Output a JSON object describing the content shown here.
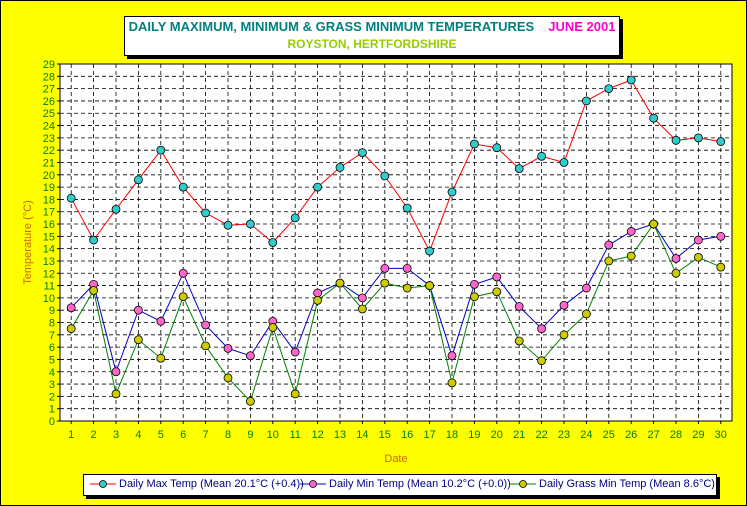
{
  "header": {
    "title": "DAILY MAXIMUM, MINIMUM & GRASS MINIMUM TEMPERATURES",
    "month": "JUNE 2001",
    "subtitle": "ROYSTON, HERTFORDSHIRE"
  },
  "chart_data": {
    "type": "line",
    "xlabel": "Date",
    "ylabel": "Temperature (°C)",
    "x": [
      1,
      2,
      3,
      4,
      5,
      6,
      7,
      8,
      9,
      10,
      11,
      12,
      13,
      14,
      15,
      16,
      17,
      18,
      19,
      20,
      21,
      22,
      23,
      24,
      25,
      26,
      27,
      28,
      29,
      30
    ],
    "ylim": [
      0,
      29
    ],
    "ytick_step": 1,
    "grid": true,
    "legend_position": "bottom",
    "series": [
      {
        "name": "Daily Max Temp (Mean 20.1°C (+0.4))",
        "line_color": "#ff0000",
        "marker_color": "#33cccc",
        "values": [
          18.1,
          14.7,
          17.2,
          19.6,
          22.0,
          19.0,
          16.9,
          15.9,
          16.0,
          14.5,
          16.5,
          19.0,
          20.6,
          21.8,
          19.9,
          17.3,
          13.8,
          18.6,
          22.5,
          22.2,
          20.5,
          21.5,
          21.0,
          26.0,
          27.0,
          27.7,
          24.6,
          22.8,
          23.0,
          22.7
        ]
      },
      {
        "name": "Daily Min Temp (Mean 10.2°C (+0.0))",
        "line_color": "#0000cc",
        "marker_color": "#ff66cc",
        "values": [
          9.2,
          11.1,
          4.0,
          9.0,
          8.1,
          12.0,
          7.8,
          5.9,
          5.3,
          8.1,
          5.6,
          10.4,
          11.2,
          10.0,
          12.4,
          12.4,
          11.0,
          5.3,
          11.1,
          11.7,
          9.3,
          7.5,
          9.4,
          10.8,
          14.3,
          15.4,
          16.0,
          13.2,
          14.7,
          15.0
        ]
      },
      {
        "name": "Daily Grass Min Temp (Mean 8.6°C)",
        "line_color": "#008000",
        "marker_color": "#cccc00",
        "values": [
          7.5,
          10.6,
          2.2,
          6.6,
          5.1,
          10.1,
          6.1,
          3.5,
          1.6,
          7.6,
          2.2,
          9.8,
          11.2,
          9.1,
          11.2,
          10.8,
          11.0,
          3.1,
          10.1,
          10.5,
          6.5,
          4.9,
          7.0,
          8.7,
          13.0,
          13.4,
          16.0,
          12.0,
          13.3,
          12.5
        ]
      }
    ]
  }
}
